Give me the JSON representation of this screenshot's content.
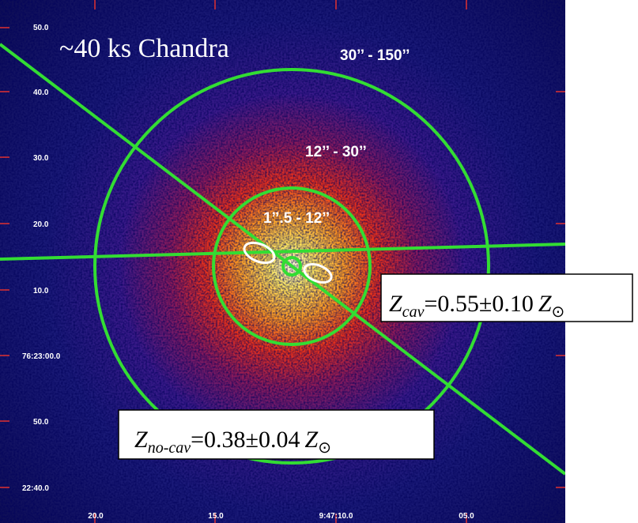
{
  "image": {
    "title": "~40 ks Chandra",
    "regions": [
      "30’’ - 150’’",
      "12’’ - 30’’",
      "1’’.5 - 12’’"
    ],
    "y_axis_labels": [
      "50.0",
      "40.0",
      "30.0",
      "20.0",
      "10.0",
      "76:23:00.0",
      "50.0",
      "22:40.0"
    ],
    "x_axis_labels": [
      "20.0",
      "15.0",
      "9:47:10.0",
      "05.0"
    ],
    "annotations": [
      {
        "symbol": "Z",
        "subscript": "cav",
        "text": "=0.55±0.10",
        "unit_symbol": "Z",
        "unit_subscript": "⊙"
      },
      {
        "symbol": "Z",
        "subscript": "no-cav",
        "text": "=0.38±0.04",
        "unit_symbol": "Z",
        "unit_subscript": "⊙"
      }
    ]
  }
}
